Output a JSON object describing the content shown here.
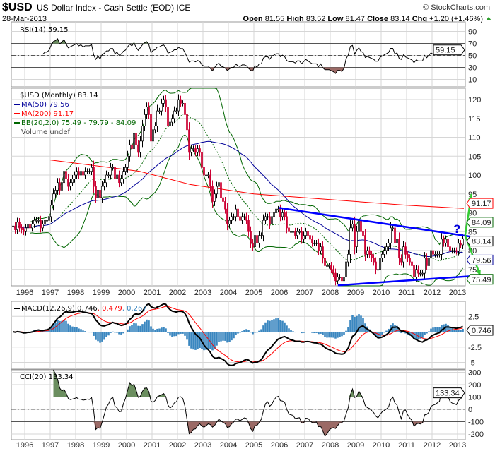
{
  "header": {
    "symbol": "$USD",
    "name": "US Dollar Index - Cash Settle (EOD) ICE",
    "date": "28-Mar-2013",
    "watermark": "© StockCharts.com",
    "open_label": "Open",
    "open": "81.55",
    "high_label": "High",
    "high": "83.52",
    "low_label": "Low",
    "low": "81.47",
    "close_label": "Close",
    "close": "83.14",
    "chg_label": "Chg",
    "chg": "+1.20 (+1.46%)"
  },
  "legend": {
    "rsi": "RSI(14) 59.15",
    "price": "$USD (Monthly) 83.14",
    "ma50": "MA(50) 79.56",
    "ma200": "MA(200) 91.17",
    "bb": "BB(20,2.0) 75.49 - 79.79 - 84.09",
    "volume": "Volume undef",
    "macd": "MACD(12,26,9) 0.746",
    "macd_signal": ", 0.479",
    "macd_hist": ", 0.267",
    "cci": "CCI(20) 133.34"
  },
  "tags": {
    "rsi": "59.15",
    "close": "83.14",
    "bb_upper": "84.09",
    "ma200": "91.17",
    "ma50": "79.56",
    "bb_lower": "75.49",
    "macd": "0.746",
    "cci": "133.34"
  },
  "annotation": {
    "question": "?"
  },
  "colors": {
    "up": "#000000",
    "down": "#cc0033",
    "ma50": "#000099",
    "ma200": "#ff0000",
    "bb": "#006600",
    "trendline": "#0000ff",
    "arrow": "#33cc33",
    "macd_hist": "#3a87c0",
    "overbought_fill": "#6b8e5f",
    "oversold_fill": "#9b6a66"
  },
  "chart_data": {
    "type": "candlestick",
    "frequency": "monthly",
    "start": "1995-07",
    "years": [
      "1996",
      "1997",
      "1998",
      "1999",
      "2000",
      "2001",
      "2002",
      "2003",
      "2004",
      "2005",
      "2006",
      "2007",
      "2008",
      "2009",
      "2010",
      "2011",
      "2012",
      "2013"
    ],
    "closes": [
      86.5,
      85.5,
      87.5,
      86,
      85.5,
      85,
      86,
      87,
      86,
      87,
      88,
      88,
      88,
      86,
      87,
      88,
      88,
      89,
      92,
      95,
      96,
      98,
      96,
      98,
      101,
      99,
      97,
      98,
      99,
      100,
      101,
      100,
      101,
      100,
      101,
      101,
      101,
      102,
      97,
      94,
      96,
      94,
      97,
      98,
      100,
      100,
      102,
      102,
      99,
      100,
      98,
      99,
      101,
      102,
      105,
      108,
      107,
      111,
      108,
      106,
      109,
      113,
      116,
      118,
      116,
      109,
      112,
      113,
      117,
      117,
      119,
      120,
      118,
      113,
      114,
      115,
      117,
      117,
      120,
      119,
      119,
      116,
      112,
      106,
      107,
      107,
      106,
      107,
      106,
      102,
      100,
      100,
      100,
      97,
      93,
      95,
      97,
      98,
      94,
      93,
      91,
      87,
      88,
      89,
      89,
      91,
      89,
      88,
      89,
      89,
      88,
      85,
      82,
      81,
      84,
      82,
      84,
      84,
      88,
      89,
      89,
      87,
      89,
      90,
      91,
      91,
      89,
      90,
      89,
      86,
      85,
      85,
      85,
      84,
      85,
      85,
      83,
      84,
      85,
      84,
      83,
      82,
      82,
      82,
      80,
      81,
      78,
      76,
      76,
      76,
      75,
      74,
      72,
      73,
      73,
      72,
      73,
      77,
      79,
      86,
      87,
      81,
      85,
      88,
      85,
      84,
      79,
      80,
      79,
      78,
      77,
      75,
      75,
      78,
      79,
      80,
      81,
      82,
      86,
      86,
      82,
      83,
      78,
      77,
      81,
      79,
      78,
      77,
      76,
      73,
      75,
      74,
      74,
      74,
      78,
      76,
      78,
      80,
      79,
      79,
      79,
      79,
      83,
      82,
      83,
      81,
      80,
      80,
      80,
      79.8,
      81.9,
      81.5,
      83.14
    ],
    "ma200": [
      [
        1997.0,
        104
      ],
      [
        2000.5,
        101
      ],
      [
        2002.5,
        97.5
      ],
      [
        2005.0,
        95
      ],
      [
        2008.0,
        93.5
      ],
      [
        2011.0,
        92
      ],
      [
        2013.25,
        91.17
      ]
    ],
    "trendlines": [
      {
        "from": [
          2006.0,
          91.3
        ],
        "to": [
          2013.9,
          83.3
        ]
      },
      {
        "from": [
          2008.3,
          70.8
        ],
        "to": [
          2013.9,
          73.4
        ]
      }
    ],
    "arrows": [
      {
        "from": [
          2013.3,
          84
        ],
        "to": [
          2013.55,
          95
        ]
      },
      {
        "from": [
          2013.3,
          84
        ],
        "to": [
          2013.9,
          73.3
        ]
      }
    ],
    "panels": {
      "rsi": {
        "ticks": [
          90,
          70,
          50,
          30,
          10
        ],
        "levels": [
          70,
          50,
          30
        ]
      },
      "price": {
        "ticks": [
          120,
          115,
          110,
          105,
          100,
          95,
          90,
          85,
          80,
          75
        ],
        "scale": "linear"
      },
      "macd": {
        "ticks": [
          2.5,
          -2.5,
          -5.0
        ]
      },
      "cci": {
        "ticks": [
          300,
          200,
          100,
          0,
          -100,
          -200
        ],
        "levels": [
          100,
          0,
          -100
        ]
      }
    }
  }
}
